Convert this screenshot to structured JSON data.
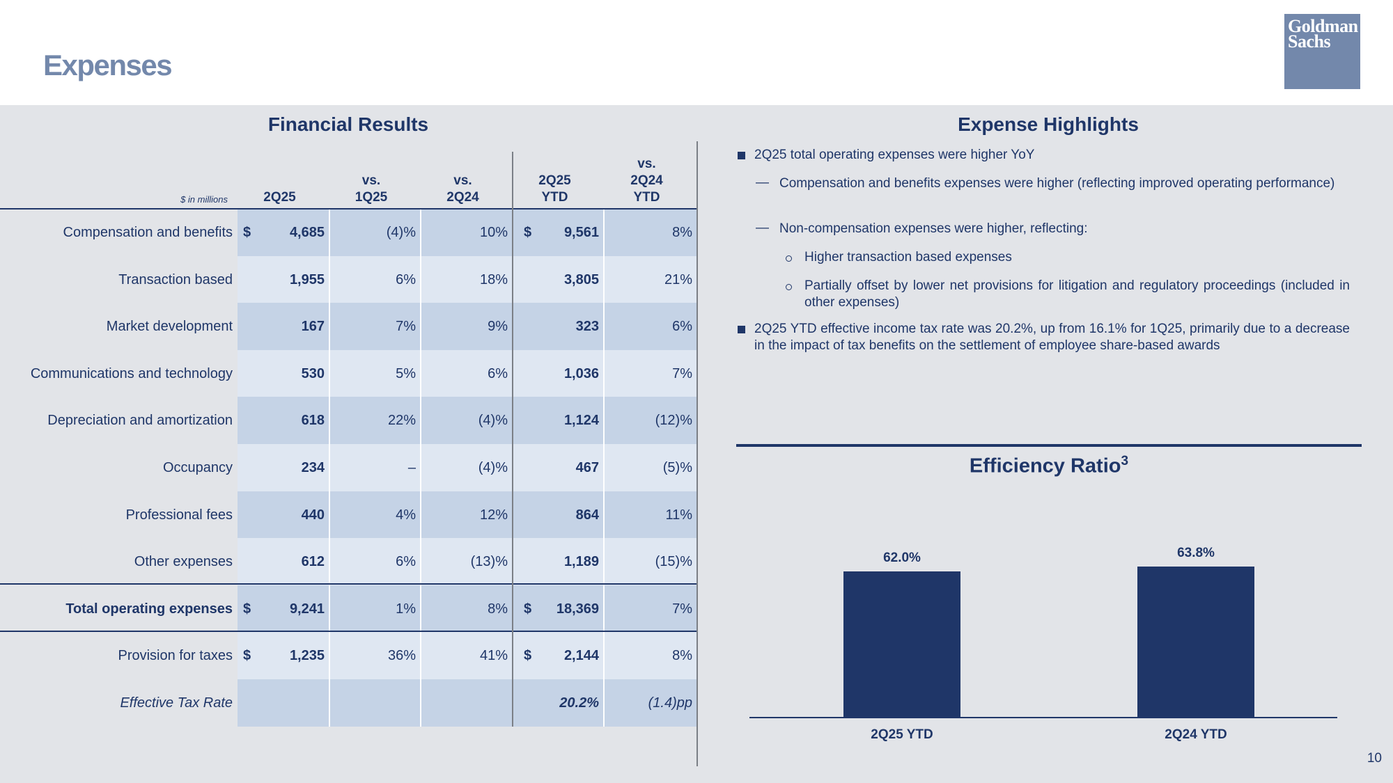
{
  "page": {
    "title": "Expenses",
    "logo": [
      "Goldman",
      "Sachs"
    ],
    "page_number": "10"
  },
  "financial_results": {
    "title": "Financial Results",
    "units_note": "$ in millions",
    "columns": [
      "2Q25",
      "vs.\n1Q25",
      "vs.\n2Q24",
      "2Q25\nYTD",
      "vs.\n2Q24\nYTD"
    ],
    "rows": [
      {
        "label": "Compensation and benefits",
        "q": "4,685",
        "vs1q": "(4)%",
        "vs2q": "10%",
        "ytd": "9,561",
        "vsytd": "8%",
        "dollar_q": "$",
        "dollar_ytd": "$"
      },
      {
        "label": "Transaction based",
        "q": "1,955",
        "vs1q": "6%",
        "vs2q": "18%",
        "ytd": "3,805",
        "vsytd": "21%"
      },
      {
        "label": "Market development",
        "q": "167",
        "vs1q": "7%",
        "vs2q": "9%",
        "ytd": "323",
        "vsytd": "6%"
      },
      {
        "label": "Communications and technology",
        "q": "530",
        "vs1q": "5%",
        "vs2q": "6%",
        "ytd": "1,036",
        "vsytd": "7%"
      },
      {
        "label": "Depreciation and amortization",
        "q": "618",
        "vs1q": "22%",
        "vs2q": "(4)%",
        "ytd": "1,124",
        "vsytd": "(12)%"
      },
      {
        "label": "Occupancy",
        "q": "234",
        "vs1q": "–",
        "vs2q": "(4)%",
        "ytd": "467",
        "vsytd": "(5)%"
      },
      {
        "label": "Professional fees",
        "q": "440",
        "vs1q": "4%",
        "vs2q": "12%",
        "ytd": "864",
        "vsytd": "11%"
      },
      {
        "label": "Other expenses",
        "q": "612",
        "vs1q": "6%",
        "vs2q": "(13)%",
        "ytd": "1,189",
        "vsytd": "(15)%"
      },
      {
        "label": "Total operating expenses",
        "q": "9,241",
        "vs1q": "1%",
        "vs2q": "8%",
        "ytd": "18,369",
        "vsytd": "7%",
        "dollar_q": "$",
        "dollar_ytd": "$"
      },
      {
        "label": "Provision for taxes",
        "q": "1,235",
        "vs1q": "36%",
        "vs2q": "41%",
        "ytd": "2,144",
        "vsytd": "8%",
        "dollar_q": "$",
        "dollar_ytd": "$"
      },
      {
        "label": "Effective Tax Rate",
        "q": "",
        "vs1q": "",
        "vs2q": "",
        "ytd": "20.2%",
        "vsytd": "(1.4)pp"
      }
    ]
  },
  "expense_highlights": {
    "title": "Expense Highlights",
    "bullet1": "2Q25 total operating expenses were higher YoY",
    "sub1": "Compensation and benefits expenses were higher (reflecting improved operating performance)",
    "sub2": "Non-compensation expenses were higher, reflecting:",
    "subsub1": "Higher transaction based expenses",
    "subsub2": "Partially offset by lower net provisions for litigation and regulatory proceedings (included in other expenses)",
    "bullet2": "2Q25 YTD effective income tax rate was 20.2%, up from 16.1% for 1Q25, primarily due to a decrease in the impact of tax benefits on the settlement of employee share-based awards"
  },
  "efficiency": {
    "title": "Efficiency Ratio",
    "footnote": "3"
  },
  "colors": {
    "navy": "#1f3668",
    "slate": "#7388ab",
    "band_dark": "#c5d3e6",
    "band_light": "#dfe7f2",
    "panel": "#e2e4e8"
  },
  "chart_data": {
    "type": "bar",
    "categories": [
      "2Q25 YTD",
      "2Q24 YTD"
    ],
    "values": [
      62.0,
      63.8
    ],
    "data_labels": [
      "62.0%",
      "63.8%"
    ],
    "title": "Efficiency Ratio",
    "xlabel": "",
    "ylabel": "",
    "grid": false,
    "color": "#1f3668"
  }
}
